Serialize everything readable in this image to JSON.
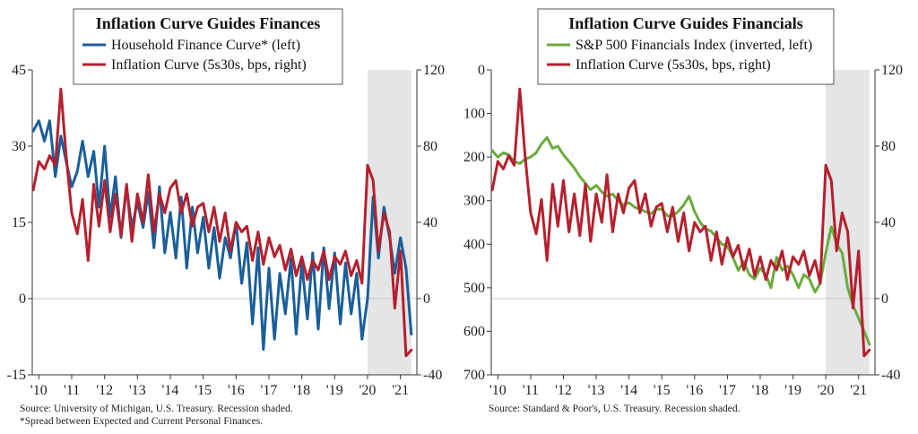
{
  "colors": {
    "household": "#1b5e9a",
    "inflation": "#b5202e",
    "financials": "#6aab3d",
    "recession": "#e4e5e6",
    "axis": "#333333"
  },
  "chart_data": [
    {
      "type": "line",
      "title": "Inflation Curve Guides Finances",
      "x_tick_labels": [
        "'10",
        "'11",
        "'12",
        "'13",
        "'14",
        "'15",
        "'16",
        "'17",
        "'18",
        "'19",
        "'20",
        "'21"
      ],
      "xlim": [
        2009.8,
        2021.5
      ],
      "left_axis": {
        "ylim": [
          -15,
          45
        ],
        "ticks": [
          "-15",
          "0",
          "15",
          "30",
          "45"
        ],
        "inverted": false
      },
      "right_axis": {
        "ylim": [
          -40,
          120
        ],
        "ticks": [
          "-40",
          "0",
          "40",
          "80",
          "120"
        ]
      },
      "recession_shading": [
        2020.0,
        2021.33
      ],
      "grid": false,
      "legend_position": "top-center",
      "series": [
        {
          "name": "Household Finance Curve* (left)",
          "axis": "left",
          "x": [
            2009.83,
            2010.0,
            2010.17,
            2010.33,
            2010.5,
            2010.67,
            2010.83,
            2011.0,
            2011.17,
            2011.33,
            2011.5,
            2011.67,
            2011.83,
            2012.0,
            2012.17,
            2012.33,
            2012.5,
            2012.67,
            2012.83,
            2013.0,
            2013.17,
            2013.33,
            2013.5,
            2013.67,
            2013.83,
            2014.0,
            2014.17,
            2014.33,
            2014.5,
            2014.67,
            2014.83,
            2015.0,
            2015.17,
            2015.33,
            2015.5,
            2015.67,
            2015.83,
            2016.0,
            2016.17,
            2016.33,
            2016.5,
            2016.67,
            2016.83,
            2017.0,
            2017.17,
            2017.33,
            2017.5,
            2017.67,
            2017.83,
            2018.0,
            2018.17,
            2018.33,
            2018.5,
            2018.67,
            2018.83,
            2019.0,
            2019.17,
            2019.33,
            2019.5,
            2019.67,
            2019.83,
            2020.0,
            2020.17,
            2020.33,
            2020.5,
            2020.67,
            2020.83,
            2021.0,
            2021.17,
            2021.33
          ],
          "y": [
            33,
            35,
            31,
            35,
            24,
            32,
            27,
            22,
            25,
            31,
            24,
            29,
            18,
            30,
            16,
            24,
            12,
            22,
            14,
            19,
            14,
            21,
            10,
            22,
            9,
            17,
            8,
            20,
            6,
            18,
            9,
            16,
            6,
            14,
            4,
            12,
            8,
            15,
            3,
            11,
            -5,
            10,
            -10,
            6,
            -8,
            5,
            -3,
            8,
            -7,
            7,
            -4,
            9,
            -6,
            10,
            -2,
            9,
            -5,
            7,
            -3,
            5,
            -8,
            0,
            20,
            8,
            18,
            12,
            5,
            12,
            6,
            -7
          ]
        },
        {
          "name": "Inflation Curve (5s30s, bps, right)",
          "axis": "right",
          "x": [
            2009.83,
            2010.0,
            2010.17,
            2010.33,
            2010.5,
            2010.67,
            2010.83,
            2011.0,
            2011.17,
            2011.33,
            2011.5,
            2011.67,
            2011.83,
            2012.0,
            2012.17,
            2012.33,
            2012.5,
            2012.67,
            2012.83,
            2013.0,
            2013.17,
            2013.33,
            2013.5,
            2013.67,
            2013.83,
            2014.0,
            2014.17,
            2014.33,
            2014.5,
            2014.67,
            2014.83,
            2015.0,
            2015.17,
            2015.33,
            2015.5,
            2015.67,
            2015.83,
            2016.0,
            2016.17,
            2016.33,
            2016.5,
            2016.67,
            2016.83,
            2017.0,
            2017.17,
            2017.33,
            2017.5,
            2017.67,
            2017.83,
            2018.0,
            2018.17,
            2018.33,
            2018.5,
            2018.67,
            2018.83,
            2019.0,
            2019.17,
            2019.33,
            2019.5,
            2019.67,
            2019.83,
            2020.0,
            2020.17,
            2020.33,
            2020.5,
            2020.67,
            2020.83,
            2021.0,
            2021.17,
            2021.33
          ],
          "y": [
            57,
            72,
            68,
            75,
            70,
            110,
            75,
            45,
            34,
            52,
            20,
            60,
            38,
            62,
            35,
            55,
            33,
            60,
            30,
            55,
            40,
            65,
            35,
            55,
            45,
            58,
            62,
            45,
            55,
            38,
            48,
            50,
            35,
            48,
            30,
            45,
            25,
            40,
            35,
            38,
            20,
            35,
            18,
            32,
            22,
            28,
            15,
            26,
            12,
            22,
            10,
            20,
            15,
            25,
            10,
            22,
            18,
            25,
            12,
            20,
            8,
            70,
            62,
            25,
            45,
            35,
            -5,
            25,
            -30,
            -27
          ]
        }
      ],
      "source": "Source:  University of Michigan, U.S. Treasury. Recession shaded.",
      "footnote": "*Spread between Expected and Current Personal Finances."
    },
    {
      "type": "line",
      "title": "Inflation Curve Guides Financials",
      "x_tick_labels": [
        "'10",
        "'11",
        "'12",
        "'13",
        "'14",
        "'15",
        "'16",
        "'17",
        "'18",
        "'19",
        "'20",
        "'21"
      ],
      "xlim": [
        2009.8,
        2021.5
      ],
      "left_axis": {
        "ylim": [
          700,
          0
        ],
        "ticks": [
          "0",
          "100",
          "200",
          "300",
          "400",
          "500",
          "600",
          "700"
        ],
        "inverted": true
      },
      "right_axis": {
        "ylim": [
          -40,
          120
        ],
        "ticks": [
          "-40",
          "0",
          "40",
          "80",
          "120"
        ]
      },
      "recession_shading": [
        2020.0,
        2021.33
      ],
      "grid": false,
      "legend_position": "top-center",
      "series": [
        {
          "name": "S&P 500 Financials Index (inverted, left)",
          "axis": "left",
          "x": [
            2009.83,
            2010.0,
            2010.17,
            2010.33,
            2010.5,
            2010.67,
            2010.83,
            2011.0,
            2011.17,
            2011.33,
            2011.5,
            2011.67,
            2011.83,
            2012.0,
            2012.17,
            2012.33,
            2012.5,
            2012.67,
            2012.83,
            2013.0,
            2013.17,
            2013.33,
            2013.5,
            2013.67,
            2013.83,
            2014.0,
            2014.17,
            2014.33,
            2014.5,
            2014.67,
            2014.83,
            2015.0,
            2015.17,
            2015.33,
            2015.5,
            2015.67,
            2015.83,
            2016.0,
            2016.17,
            2016.33,
            2016.5,
            2016.67,
            2016.83,
            2017.0,
            2017.17,
            2017.33,
            2017.5,
            2017.67,
            2017.83,
            2018.0,
            2018.17,
            2018.33,
            2018.5,
            2018.67,
            2018.83,
            2019.0,
            2019.17,
            2019.33,
            2019.5,
            2019.67,
            2019.83,
            2020.0,
            2020.17,
            2020.33,
            2020.5,
            2020.67,
            2020.83,
            2021.0,
            2021.17,
            2021.33
          ],
          "y": [
            185,
            200,
            190,
            195,
            210,
            215,
            205,
            200,
            190,
            170,
            155,
            180,
            175,
            195,
            210,
            225,
            245,
            260,
            275,
            265,
            280,
            290,
            285,
            300,
            310,
            305,
            315,
            320,
            325,
            330,
            320,
            320,
            335,
            335,
            325,
            310,
            290,
            325,
            350,
            365,
            370,
            385,
            400,
            405,
            430,
            460,
            440,
            470,
            480,
            455,
            470,
            500,
            430,
            460,
            450,
            470,
            500,
            470,
            480,
            510,
            490,
            420,
            360,
            400,
            420,
            500,
            540,
            570,
            600,
            630
          ]
        },
        {
          "name": "Inflation Curve (5s30s, bps, right)",
          "axis": "right",
          "x": [
            2009.83,
            2010.0,
            2010.17,
            2010.33,
            2010.5,
            2010.67,
            2010.83,
            2011.0,
            2011.17,
            2011.33,
            2011.5,
            2011.67,
            2011.83,
            2012.0,
            2012.17,
            2012.33,
            2012.5,
            2012.67,
            2012.83,
            2013.0,
            2013.17,
            2013.33,
            2013.5,
            2013.67,
            2013.83,
            2014.0,
            2014.17,
            2014.33,
            2014.5,
            2014.67,
            2014.83,
            2015.0,
            2015.17,
            2015.33,
            2015.5,
            2015.67,
            2015.83,
            2016.0,
            2016.17,
            2016.33,
            2016.5,
            2016.67,
            2016.83,
            2017.0,
            2017.17,
            2017.33,
            2017.5,
            2017.67,
            2017.83,
            2018.0,
            2018.17,
            2018.33,
            2018.5,
            2018.67,
            2018.83,
            2019.0,
            2019.17,
            2019.33,
            2019.5,
            2019.67,
            2019.83,
            2020.0,
            2020.17,
            2020.33,
            2020.5,
            2020.67,
            2020.83,
            2021.0,
            2021.17,
            2021.33
          ],
          "y": [
            57,
            72,
            68,
            75,
            70,
            110,
            75,
            45,
            34,
            52,
            20,
            60,
            38,
            62,
            35,
            55,
            33,
            60,
            30,
            55,
            40,
            65,
            35,
            55,
            45,
            58,
            62,
            45,
            55,
            38,
            48,
            50,
            35,
            48,
            30,
            45,
            25,
            40,
            35,
            38,
            20,
            35,
            18,
            32,
            22,
            28,
            15,
            26,
            12,
            22,
            10,
            20,
            15,
            25,
            10,
            22,
            18,
            25,
            12,
            20,
            8,
            70,
            62,
            25,
            45,
            35,
            -5,
            25,
            -30,
            -27
          ]
        }
      ],
      "source": "Source:  Standard & Poor's, U.S. Treasury. Recession shaded.",
      "footnote": ""
    }
  ]
}
